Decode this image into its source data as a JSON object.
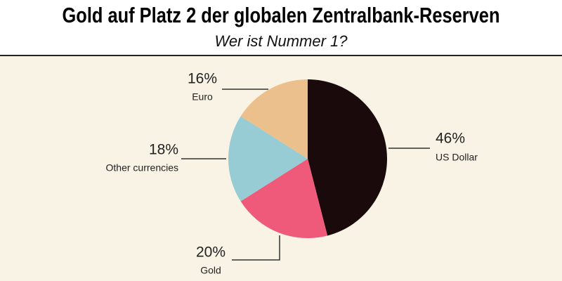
{
  "chart_data": {
    "type": "pie",
    "title": "Gold auf Platz 2 der globalen Zentralbank-Reserven",
    "subtitle": "Wer ist Nummer 1?",
    "categories": [
      "US Dollar",
      "Gold",
      "Other currencies",
      "Euro"
    ],
    "values": [
      46,
      20,
      18,
      16
    ],
    "value_labels": [
      "46%",
      "20%",
      "18%",
      "16%"
    ],
    "colors": [
      "#1a0a0b",
      "#f05a7a",
      "#98ccd4",
      "#ecc08c"
    ]
  }
}
